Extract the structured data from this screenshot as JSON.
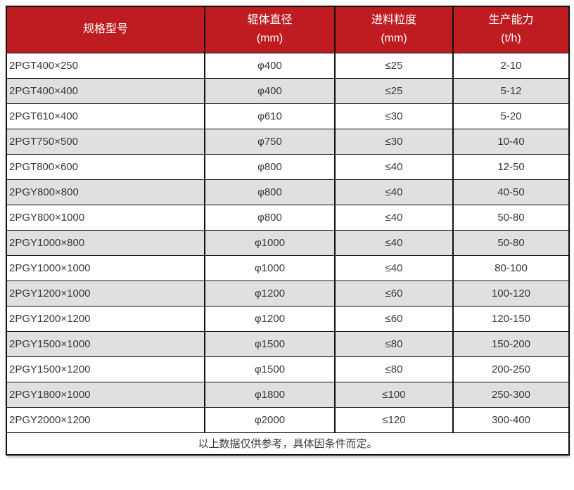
{
  "colors": {
    "header_bg": "#be1c21",
    "header_text": "#ffffff",
    "row_alt_bg": "#e0e0e0",
    "border": "#101010",
    "body_text": "#3a3a3a"
  },
  "chart_data": {
    "type": "table",
    "columns": [
      {
        "label": "规格型号",
        "unit": ""
      },
      {
        "label": "辊体直径",
        "unit": "(mm)"
      },
      {
        "label": "进料粒度",
        "unit": "(mm)"
      },
      {
        "label": "生产能力",
        "unit": "(t/h)"
      }
    ],
    "rows": [
      [
        "2PGT400×250",
        "φ400",
        "≤25",
        "2-10"
      ],
      [
        "2PGT400×400",
        "φ400",
        "≤25",
        "5-12"
      ],
      [
        "2PGT610×400",
        "φ610",
        "≤30",
        "5-20"
      ],
      [
        "2PGT750×500",
        "φ750",
        "≤30",
        "10-40"
      ],
      [
        "2PGT800×600",
        "φ800",
        "≤40",
        "12-50"
      ],
      [
        "2PGY800×800",
        "φ800",
        "≤40",
        "40-50"
      ],
      [
        "2PGY800×1000",
        "φ800",
        "≤40",
        "50-80"
      ],
      [
        "2PGY1000×800",
        "φ1000",
        "≤40",
        "50-80"
      ],
      [
        "2PGY1000×1000",
        "φ1000",
        "≤40",
        "80-100"
      ],
      [
        "2PGY1200×1000",
        "φ1200",
        "≤60",
        "100-120"
      ],
      [
        "2PGY1200×1200",
        "φ1200",
        "≤60",
        "120-150"
      ],
      [
        "2PGY1500×1000",
        "φ1500",
        "≤80",
        "150-200"
      ],
      [
        "2PGY1500×1200",
        "φ1500",
        "≤80",
        "200-250"
      ],
      [
        "2PGY1800×1000",
        "φ1800",
        "≤100",
        "250-300"
      ],
      [
        "2PGY2000×1200",
        "φ2000",
        "≤120",
        "300-400"
      ]
    ],
    "footnote": "以上数据仅供参考，具体因条件而定。"
  }
}
